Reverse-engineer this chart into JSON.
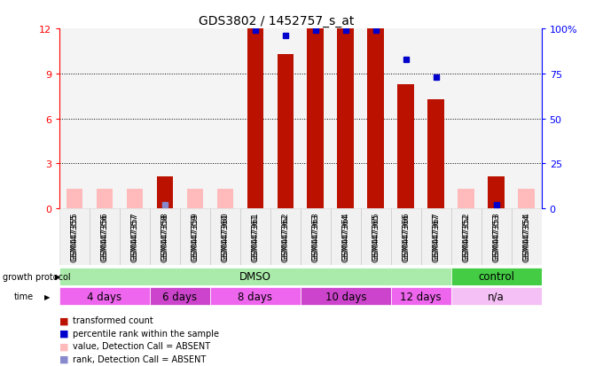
{
  "title": "GDS3802 / 1452757_s_at",
  "samples": [
    "GSM447355",
    "GSM447356",
    "GSM447357",
    "GSM447358",
    "GSM447359",
    "GSM447360",
    "GSM447361",
    "GSM447362",
    "GSM447363",
    "GSM447364",
    "GSM447365",
    "GSM447366",
    "GSM447367",
    "GSM447352",
    "GSM447353",
    "GSM447354"
  ],
  "transformed_count": [
    1.3,
    1.3,
    1.3,
    2.1,
    1.3,
    1.3,
    12.0,
    10.3,
    12.0,
    12.0,
    12.0,
    8.3,
    7.3,
    1.3,
    2.1,
    1.3
  ],
  "percentile_rank": [
    null,
    null,
    null,
    2.0,
    null,
    null,
    99.0,
    96.0,
    99.0,
    99.0,
    99.0,
    83.0,
    73.0,
    null,
    2.0,
    null
  ],
  "is_absent_value": [
    true,
    true,
    true,
    false,
    true,
    true,
    false,
    false,
    false,
    false,
    false,
    false,
    false,
    true,
    false,
    true
  ],
  "is_absent_rank": [
    true,
    true,
    true,
    true,
    true,
    true,
    false,
    false,
    false,
    false,
    false,
    false,
    false,
    true,
    false,
    true
  ],
  "growth_protocol_groups": [
    {
      "label": "DMSO",
      "start": 0,
      "end": 12,
      "color": "#AAEAAA"
    },
    {
      "label": "control",
      "start": 13,
      "end": 15,
      "color": "#44CC44"
    }
  ],
  "time_groups": [
    {
      "label": "4 days",
      "start": 0,
      "end": 2,
      "color": "#EE66EE"
    },
    {
      "label": "6 days",
      "start": 3,
      "end": 4,
      "color": "#CC44CC"
    },
    {
      "label": "8 days",
      "start": 5,
      "end": 7,
      "color": "#EE66EE"
    },
    {
      "label": "10 days",
      "start": 8,
      "end": 10,
      "color": "#CC44CC"
    },
    {
      "label": "12 days",
      "start": 11,
      "end": 12,
      "color": "#EE66EE"
    },
    {
      "label": "n/a",
      "start": 13,
      "end": 15,
      "color": "#F5C0F5"
    }
  ],
  "ylim_left": [
    0,
    12
  ],
  "ylim_right": [
    0,
    100
  ],
  "yticks_left": [
    0,
    3,
    6,
    9,
    12
  ],
  "yticks_right": [
    0,
    25,
    50,
    75,
    100
  ],
  "ytick_labels_left": [
    "0",
    "3",
    "6",
    "9",
    "12"
  ],
  "ytick_labels_right": [
    "0",
    "25",
    "50",
    "75",
    "100%"
  ],
  "bar_color_present": "#BB1100",
  "bar_color_absent": "#FFBBBB",
  "rank_color_present": "#0000CC",
  "rank_color_absent": "#8888CC",
  "legend_items": [
    {
      "label": "transformed count",
      "color": "#BB1100"
    },
    {
      "label": "percentile rank within the sample",
      "color": "#0000CC"
    },
    {
      "label": "value, Detection Call = ABSENT",
      "color": "#FFBBBB"
    },
    {
      "label": "rank, Detection Call = ABSENT",
      "color": "#8888CC"
    }
  ]
}
